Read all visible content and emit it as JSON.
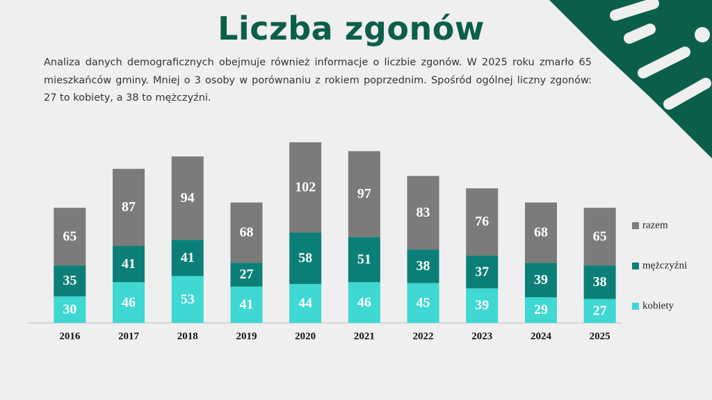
{
  "title": "Liczba zgonów",
  "description": "Analiza danych demograficznych obejmuje również informacje o liczbie zgonów. W 2025 roku zmarło 65 mieszkańców gminy. Mniej o 3 osoby w porównaniu z rokiem poprzednim. Spośród ogólnej liczny zgonów: 27 to kobiety, a 38 to mężczyźni.",
  "chart_data": {
    "type": "bar",
    "stacked": true,
    "legend": "right",
    "categories": [
      "2016",
      "2017",
      "2018",
      "2019",
      "2020",
      "2021",
      "2022",
      "2023",
      "2024",
      "2025"
    ],
    "series": [
      {
        "name": "kobiety",
        "color": "#3fd8d2",
        "values": [
          30,
          46,
          53,
          41,
          44,
          46,
          45,
          39,
          29,
          27
        ]
      },
      {
        "name": "mężczyźni",
        "color": "#0b7f77",
        "values": [
          35,
          41,
          41,
          27,
          58,
          51,
          38,
          37,
          39,
          38
        ]
      },
      {
        "name": "razem",
        "color": "#7b7b7b",
        "values": [
          65,
          87,
          94,
          68,
          102,
          97,
          83,
          76,
          68,
          65
        ]
      }
    ]
  }
}
